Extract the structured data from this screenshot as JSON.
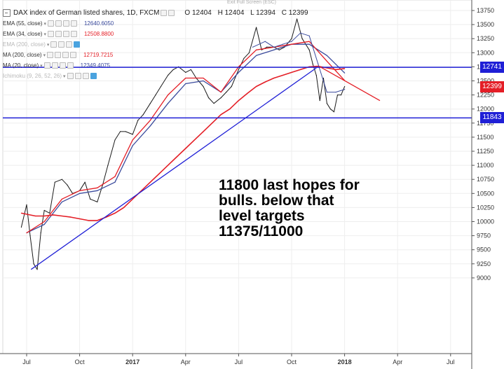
{
  "header": {
    "title": "DAX index of German listed shares, 1D, FXCM",
    "ohlc": {
      "o": "O 12404",
      "h": "H 12404",
      "l": "L 12394",
      "c": "C 12399"
    },
    "exit_fullscreen": "Exit Full Screen (ESC)"
  },
  "indicators": [
    {
      "label": "EMA (55, close)",
      "value": "12640.6050",
      "color": "#3a4a9c",
      "faded": false
    },
    {
      "label": "EMA (34, close)",
      "value": "12508.8800",
      "color": "#e41e26",
      "faded": false
    },
    {
      "label": "EMA (200, close)",
      "value": "",
      "color": "",
      "faded": true
    },
    {
      "label": "MA (200, close)",
      "value": "12719.7215",
      "color": "#e41e26",
      "faded": false
    },
    {
      "label": "MA (20, close)",
      "value": "12349.4075",
      "color": "#3a4a9c",
      "faded": false
    },
    {
      "label": "Ichimoku (9, 26, 52, 26)",
      "value": "",
      "color": "",
      "faded": true
    }
  ],
  "price_tags": [
    {
      "value": "12741",
      "color": "#1f1fd6"
    },
    {
      "value": "12399",
      "color": "#e41e26"
    },
    {
      "value": "11843",
      "color": "#1f1fd6"
    }
  ],
  "annotation": "11800 last hopes for\nbulls. below that\nlevel targets\n11375/11000",
  "chart_data": {
    "type": "line",
    "price_axis_ticks": [
      9000,
      9250,
      9500,
      9750,
      10000,
      10250,
      10500,
      10750,
      11000,
      11250,
      11500,
      11750,
      12000,
      12250,
      12500,
      12750,
      13000,
      13250,
      13500,
      13750
    ],
    "time_axis_labels": [
      "Jul",
      "Oct",
      "2017",
      "Apr",
      "Jul",
      "Oct",
      "2018",
      "Apr",
      "Jul"
    ],
    "time_axis_bold": [
      false,
      false,
      true,
      false,
      false,
      false,
      true,
      false,
      false
    ],
    "grid": true,
    "levels": [
      {
        "name": "resistance",
        "value": 12741,
        "color": "#1f1fd6"
      },
      {
        "name": "support",
        "value": 11843,
        "color": "#1f1fd6"
      }
    ],
    "trendlines": [
      {
        "name": "uptrend",
        "color": "#1f1fd6",
        "points": [
          [
            0.25,
            9150
          ],
          [
            16.4,
            12730
          ]
        ]
      },
      {
        "name": "down-tangent",
        "color": "#e41e26",
        "points": [
          [
            16.55,
            12760
          ],
          [
            20.0,
            12150
          ]
        ]
      }
    ],
    "series": [
      {
        "name": "DAX",
        "color": "#1a1a1a",
        "x": [
          -0.3,
          0,
          0.2,
          0.4,
          0.6,
          0.8,
          1.0,
          1.3,
          1.6,
          2.0,
          2.3,
          2.6,
          3.0,
          3.3,
          3.6,
          4.0,
          4.3,
          4.6,
          5.0,
          5.3,
          5.6,
          6.0,
          6.3,
          6.6,
          7.0,
          7.3,
          7.6,
          8.0,
          8.3,
          8.6,
          9.0,
          9.3,
          9.6,
          10.0,
          10.3,
          10.6,
          11.0,
          11.3,
          11.6,
          12.0,
          12.3,
          12.6,
          13.0,
          13.3,
          13.6,
          14.0,
          14.3,
          14.6,
          15.0,
          15.3,
          15.6,
          16.0,
          16.2,
          16.4,
          16.6,
          16.8,
          17.0,
          17.2,
          17.4,
          17.6,
          17.8,
          18.0
        ],
        "values": [
          9900,
          10300,
          9750,
          9250,
          9150,
          9800,
          10200,
          10150,
          10700,
          10750,
          10650,
          10500,
          10550,
          10700,
          10400,
          10350,
          10650,
          11000,
          11450,
          11600,
          11600,
          11550,
          11800,
          11900,
          12100,
          12250,
          12400,
          12600,
          12700,
          12750,
          12650,
          12700,
          12550,
          12400,
          12200,
          12100,
          12200,
          12300,
          12400,
          12700,
          12900,
          13000,
          13450,
          13050,
          13100,
          13100,
          13050,
          13100,
          13250,
          13600,
          13250,
          13050,
          12800,
          12600,
          12150,
          12550,
          12100,
          12000,
          11950,
          12250,
          12250,
          12399
        ]
      },
      {
        "name": "EMA 55",
        "color": "#3a4a9c",
        "x": [
          0,
          1,
          2,
          3,
          4,
          5,
          6,
          7,
          8,
          9,
          10,
          11,
          12,
          13,
          14,
          15,
          16,
          17,
          18
        ],
        "values": [
          9800,
          9950,
          10350,
          10500,
          10550,
          10700,
          11350,
          11700,
          12100,
          12450,
          12500,
          12300,
          12650,
          12950,
          13050,
          13150,
          13150,
          12950,
          12640
        ]
      },
      {
        "name": "EMA 34",
        "color": "#e41e26",
        "x": [
          0,
          1,
          2,
          3,
          4,
          5,
          6,
          7,
          8,
          9,
          10,
          11,
          12,
          13,
          14,
          15,
          16,
          17,
          18
        ],
        "values": [
          9800,
          10000,
          10400,
          10550,
          10600,
          10800,
          11450,
          11800,
          12250,
          12550,
          12550,
          12300,
          12750,
          13050,
          13100,
          13150,
          13200,
          12850,
          12508
        ]
      },
      {
        "name": "MA 200",
        "color": "#e41e26",
        "x": [
          -0.3,
          0.5,
          1,
          1.5,
          2,
          2.5,
          3,
          3.5,
          4,
          4.5,
          5,
          5.5,
          6,
          6.5,
          7,
          7.5,
          8,
          8.5,
          9,
          9.5,
          10,
          10.5,
          11,
          11.5,
          12,
          12.5,
          13,
          13.5,
          14,
          14.5,
          15,
          15.5,
          16,
          16.5,
          17,
          17.5,
          18
        ],
        "values": [
          10150,
          10100,
          10100,
          10120,
          10100,
          10080,
          10050,
          10020,
          10020,
          10080,
          10150,
          10250,
          10400,
          10550,
          10700,
          10850,
          11000,
          11150,
          11300,
          11450,
          11600,
          11750,
          11900,
          12000,
          12150,
          12280,
          12400,
          12480,
          12550,
          12600,
          12650,
          12700,
          12750,
          12760,
          12730,
          12700,
          12719
        ]
      },
      {
        "name": "MA 20",
        "color": "#3a4a9c",
        "x": [
          12.8,
          13.5,
          14,
          14.5,
          15,
          15.5,
          16,
          16.5,
          17,
          17.5,
          18
        ],
        "values": [
          13100,
          13200,
          13100,
          13150,
          13200,
          13350,
          13300,
          12800,
          12300,
          12300,
          12349
        ]
      }
    ]
  }
}
